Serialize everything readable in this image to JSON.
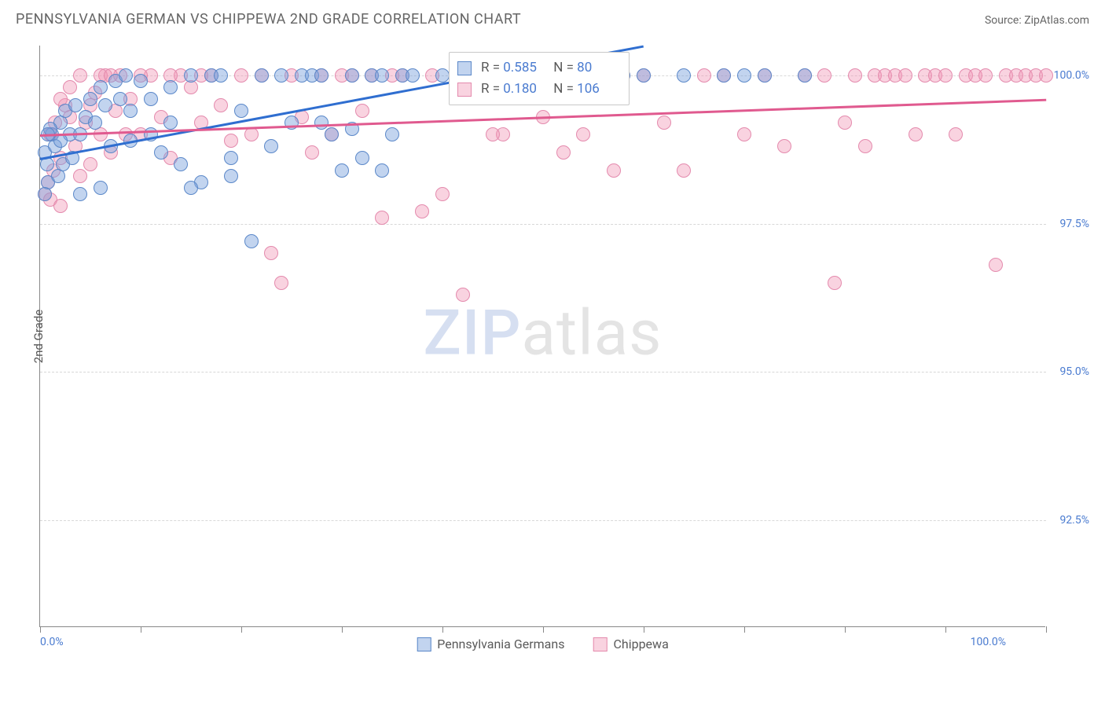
{
  "header": {
    "title": "PENNSYLVANIA GERMAN VS CHIPPEWA 2ND GRADE CORRELATION CHART",
    "source_prefix": "Source: ",
    "source_name": "ZipAtlas.com"
  },
  "chart": {
    "type": "scatter",
    "ylabel": "2nd Grade",
    "xlim": [
      0,
      100
    ],
    "ylim": [
      90.7,
      100.5
    ],
    "x_ticks": [
      0,
      10,
      20,
      30,
      40,
      50,
      60,
      70,
      80,
      90,
      100
    ],
    "y_gridlines": [
      92.5,
      95.0,
      97.5,
      100.0
    ],
    "y_tick_labels": [
      "92.5%",
      "95.0%",
      "97.5%",
      "100.0%"
    ],
    "x_min_label": "0.0%",
    "x_max_label": "100.0%",
    "background_color": "#ffffff",
    "grid_color": "#d8d8d8",
    "axis_color": "#888888",
    "tick_label_color": "#4a7bd0",
    "series": [
      {
        "name": "Pennsylvania Germans",
        "fill": "rgba(120,160,220,0.45)",
        "stroke": "#5b88c9",
        "r_value": "0.585",
        "n_value": " 80",
        "regression": {
          "x1": 0,
          "y1": 98.6,
          "x2": 60,
          "y2": 100.5,
          "color": "#2f6ed0",
          "width": 3
        },
        "marker_radius": 9,
        "points": [
          [
            0.5,
            98.7
          ],
          [
            0.7,
            98.5
          ],
          [
            0.8,
            98.2
          ],
          [
            1.2,
            99.0
          ],
          [
            1.5,
            98.8
          ],
          [
            1.8,
            98.3
          ],
          [
            2.0,
            99.2
          ],
          [
            2.3,
            98.5
          ],
          [
            2.5,
            99.4
          ],
          [
            3.0,
            99.0
          ],
          [
            3.2,
            98.6
          ],
          [
            3.5,
            99.5
          ],
          [
            4.0,
            99.0
          ],
          [
            4.5,
            99.3
          ],
          [
            5.0,
            99.6
          ],
          [
            5.5,
            99.2
          ],
          [
            6.0,
            99.8
          ],
          [
            6.5,
            99.5
          ],
          [
            7.0,
            98.8
          ],
          [
            7.5,
            99.9
          ],
          [
            8.0,
            99.6
          ],
          [
            8.5,
            100.0
          ],
          [
            9.0,
            99.4
          ],
          [
            10,
            99.9
          ],
          [
            11,
            99.0
          ],
          [
            12,
            98.7
          ],
          [
            13,
            99.8
          ],
          [
            14,
            98.5
          ],
          [
            15,
            100.0
          ],
          [
            16,
            98.2
          ],
          [
            17,
            100.0
          ],
          [
            18,
            100.0
          ],
          [
            19,
            98.6
          ],
          [
            20,
            99.4
          ],
          [
            21,
            97.2
          ],
          [
            22,
            100.0
          ],
          [
            23,
            98.8
          ],
          [
            24,
            100.0
          ],
          [
            25,
            99.2
          ],
          [
            26,
            100.0
          ],
          [
            27,
            100.0
          ],
          [
            28,
            100.0
          ],
          [
            29,
            99.0
          ],
          [
            30,
            98.4
          ],
          [
            31,
            100.0
          ],
          [
            32,
            98.6
          ],
          [
            33,
            100.0
          ],
          [
            34,
            100.0
          ],
          [
            35,
            99.0
          ],
          [
            36,
            100.0
          ],
          [
            37,
            100.0
          ],
          [
            40,
            100.0
          ],
          [
            42,
            100.0
          ],
          [
            44,
            100.0
          ],
          [
            46,
            100.0
          ],
          [
            48,
            100.0
          ],
          [
            50,
            100.0
          ],
          [
            53,
            100.0
          ],
          [
            55,
            100.0
          ],
          [
            58,
            100.0
          ],
          [
            60,
            100.0
          ],
          [
            64,
            100.0
          ],
          [
            68,
            100.0
          ],
          [
            70,
            100.0
          ],
          [
            72,
            100.0
          ],
          [
            76,
            100.0
          ],
          [
            34,
            98.4
          ],
          [
            31,
            99.1
          ],
          [
            28,
            99.2
          ],
          [
            13,
            99.2
          ],
          [
            19,
            98.3
          ],
          [
            4,
            98.0
          ],
          [
            2,
            98.9
          ],
          [
            6,
            98.1
          ],
          [
            11,
            99.6
          ],
          [
            9,
            98.9
          ],
          [
            15,
            98.1
          ],
          [
            1,
            99.1
          ],
          [
            0.5,
            98.0
          ],
          [
            0.8,
            99.0
          ]
        ]
      },
      {
        "name": "Chippewa",
        "fill": "rgba(240,150,180,0.42)",
        "stroke": "#e48aad",
        "r_value": "0.180",
        "n_value": "106",
        "regression": {
          "x1": 0,
          "y1": 99.0,
          "x2": 100,
          "y2": 99.6,
          "color": "#e05a8f",
          "width": 3
        },
        "marker_radius": 9,
        "points": [
          [
            0.5,
            98.0
          ],
          [
            0.8,
            98.2
          ],
          [
            1.0,
            99.0
          ],
          [
            1.3,
            98.4
          ],
          [
            1.5,
            99.2
          ],
          [
            2.0,
            98.6
          ],
          [
            2.5,
            99.5
          ],
          [
            3.0,
            99.8
          ],
          [
            3.5,
            98.8
          ],
          [
            4.0,
            100.0
          ],
          [
            4.5,
            99.2
          ],
          [
            5.0,
            98.5
          ],
          [
            5.5,
            99.7
          ],
          [
            6.0,
            99.0
          ],
          [
            6.5,
            100.0
          ],
          [
            7.0,
            98.7
          ],
          [
            7.5,
            99.4
          ],
          [
            8.0,
            100.0
          ],
          [
            8.5,
            99.0
          ],
          [
            9.0,
            99.6
          ],
          [
            10,
            99.0
          ],
          [
            11,
            100.0
          ],
          [
            12,
            99.3
          ],
          [
            13,
            98.6
          ],
          [
            14,
            100.0
          ],
          [
            15,
            99.8
          ],
          [
            16,
            99.2
          ],
          [
            17,
            100.0
          ],
          [
            18,
            99.5
          ],
          [
            19,
            98.9
          ],
          [
            20,
            100.0
          ],
          [
            21,
            99.0
          ],
          [
            22,
            100.0
          ],
          [
            23,
            97.0
          ],
          [
            24,
            96.5
          ],
          [
            25,
            100.0
          ],
          [
            26,
            99.3
          ],
          [
            27,
            98.7
          ],
          [
            28,
            100.0
          ],
          [
            29,
            99.0
          ],
          [
            30,
            100.0
          ],
          [
            32,
            99.4
          ],
          [
            34,
            97.6
          ],
          [
            36,
            100.0
          ],
          [
            38,
            97.7
          ],
          [
            40,
            98.0
          ],
          [
            42,
            96.3
          ],
          [
            44,
            100.0
          ],
          [
            46,
            99.0
          ],
          [
            48,
            100.0
          ],
          [
            50,
            99.3
          ],
          [
            52,
            98.7
          ],
          [
            54,
            99.0
          ],
          [
            56,
            100.0
          ],
          [
            57,
            98.4
          ],
          [
            58,
            100.0
          ],
          [
            60,
            100.0
          ],
          [
            62,
            99.2
          ],
          [
            64,
            98.4
          ],
          [
            66,
            100.0
          ],
          [
            68,
            100.0
          ],
          [
            70,
            99.0
          ],
          [
            72,
            100.0
          ],
          [
            74,
            98.8
          ],
          [
            76,
            100.0
          ],
          [
            78,
            100.0
          ],
          [
            79,
            96.5
          ],
          [
            80,
            99.2
          ],
          [
            81,
            100.0
          ],
          [
            82,
            98.8
          ],
          [
            83,
            100.0
          ],
          [
            84,
            100.0
          ],
          [
            85,
            100.0
          ],
          [
            86,
            100.0
          ],
          [
            87,
            99.0
          ],
          [
            88,
            100.0
          ],
          [
            89,
            100.0
          ],
          [
            90,
            100.0
          ],
          [
            91,
            99.0
          ],
          [
            92,
            100.0
          ],
          [
            93,
            100.0
          ],
          [
            94,
            100.0
          ],
          [
            95,
            96.8
          ],
          [
            96,
            100.0
          ],
          [
            97,
            100.0
          ],
          [
            98,
            100.0
          ],
          [
            99,
            100.0
          ],
          [
            100,
            100.0
          ],
          [
            6,
            100.0
          ],
          [
            7,
            100.0
          ],
          [
            10,
            100.0
          ],
          [
            13,
            100.0
          ],
          [
            16,
            100.0
          ],
          [
            2,
            99.6
          ],
          [
            3,
            99.3
          ],
          [
            4,
            98.3
          ],
          [
            5,
            99.5
          ],
          [
            1,
            97.9
          ],
          [
            2,
            97.8
          ],
          [
            45,
            99.0
          ],
          [
            50,
            100.0
          ],
          [
            55,
            100.0
          ],
          [
            35,
            100.0
          ],
          [
            33,
            100.0
          ],
          [
            31,
            100.0
          ],
          [
            39,
            100.0
          ]
        ]
      }
    ],
    "legend": {
      "series1_label": "Pennsylvania Germans",
      "series2_label": "Chippewa",
      "r_prefix": "R = ",
      "n_prefix": "N = "
    },
    "watermark": {
      "part1": "ZIP",
      "part2": "atlas"
    }
  }
}
